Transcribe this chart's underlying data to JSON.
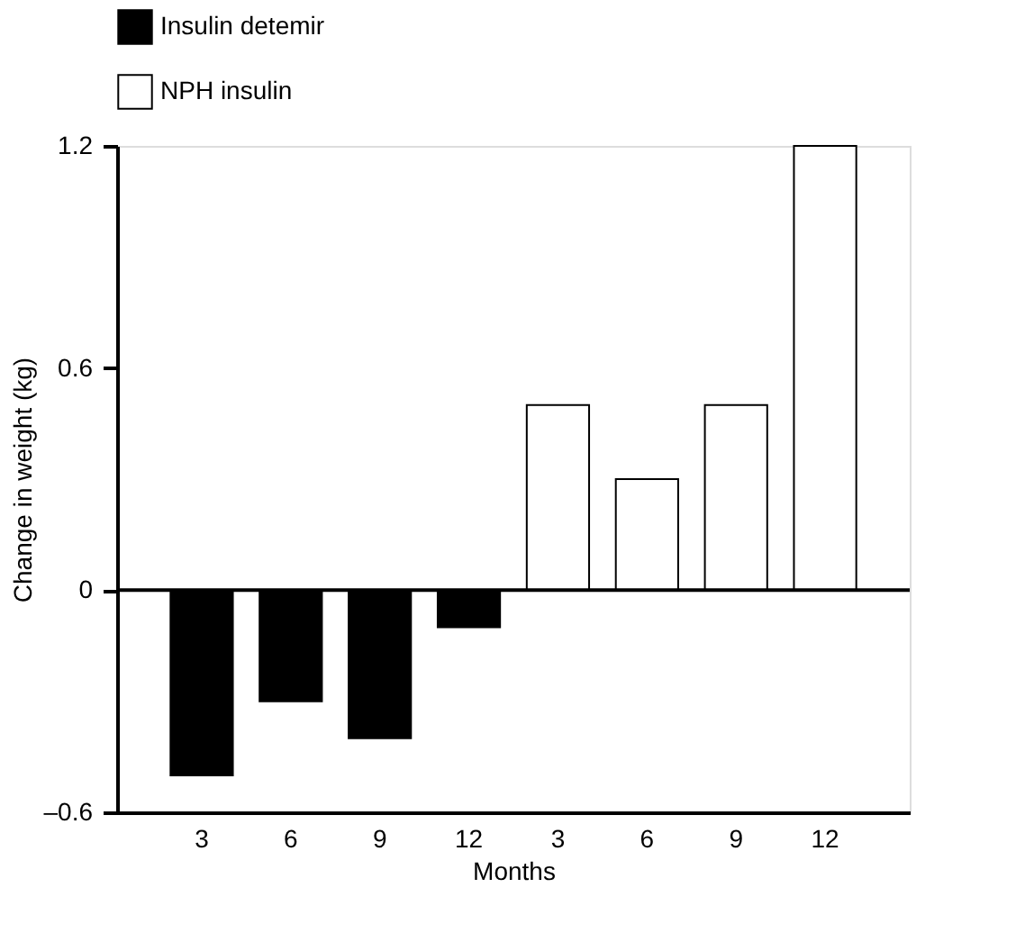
{
  "chart_data": {
    "type": "bar",
    "xlabel": "Months",
    "ylabel": "Change in weight (kg)",
    "categories": [
      "3",
      "6",
      "9",
      "12",
      "3",
      "6",
      "9",
      "12"
    ],
    "series": [
      {
        "name": "Insulin detemir",
        "color": "#000000",
        "values": [
          -0.5,
          -0.3,
          -0.4,
          -0.1,
          null,
          null,
          null,
          null
        ]
      },
      {
        "name": "NPH insulin",
        "color": "#ffffff",
        "values": [
          null,
          null,
          null,
          null,
          0.5,
          0.3,
          0.5,
          1.2
        ]
      }
    ],
    "ylim": [
      -0.6,
      1.2
    ],
    "yticks": [
      {
        "value": -0.6,
        "label": "–0.6"
      },
      0,
      0.6,
      1.2
    ],
    "ref_lines": [
      {
        "axis": "y",
        "value": 0,
        "color": "#000000"
      }
    ],
    "grid": false,
    "legend": "top"
  }
}
